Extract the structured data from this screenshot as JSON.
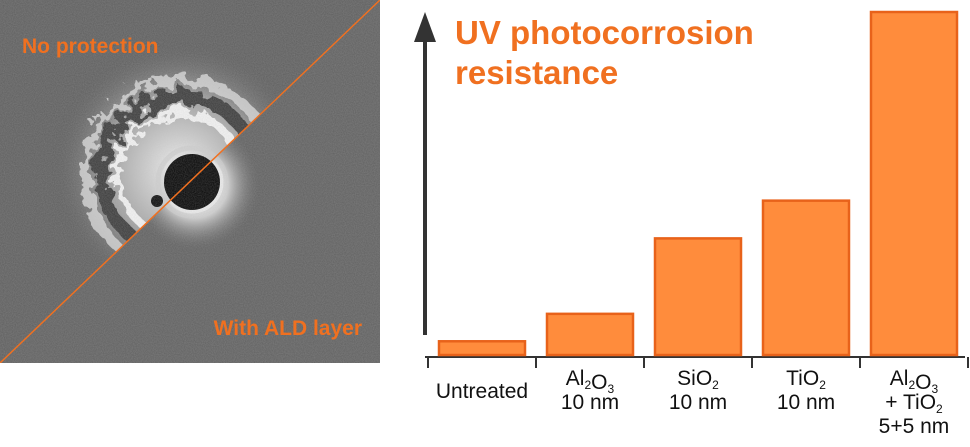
{
  "image_panel": {
    "label_top": "No protection",
    "label_bottom": "With ALD layer",
    "label_color": "#f07020"
  },
  "chart_data": {
    "type": "bar",
    "title": "UV photocorrosion resistance",
    "title_lines": [
      "UV photocorrosion",
      "resistance"
    ],
    "categories": [
      "Untreated",
      "Al2O3 10 nm",
      "SiO2 10 nm",
      "TiO2 10 nm",
      "Al2O3 + TiO2 5+5 nm"
    ],
    "values": [
      4,
      12,
      34,
      45,
      100
    ],
    "ylim": [
      0,
      100
    ],
    "bar_color": "#ff8c3c",
    "bar_edge_color": "#e8621a",
    "title_color": "#f07020",
    "grid": false
  }
}
